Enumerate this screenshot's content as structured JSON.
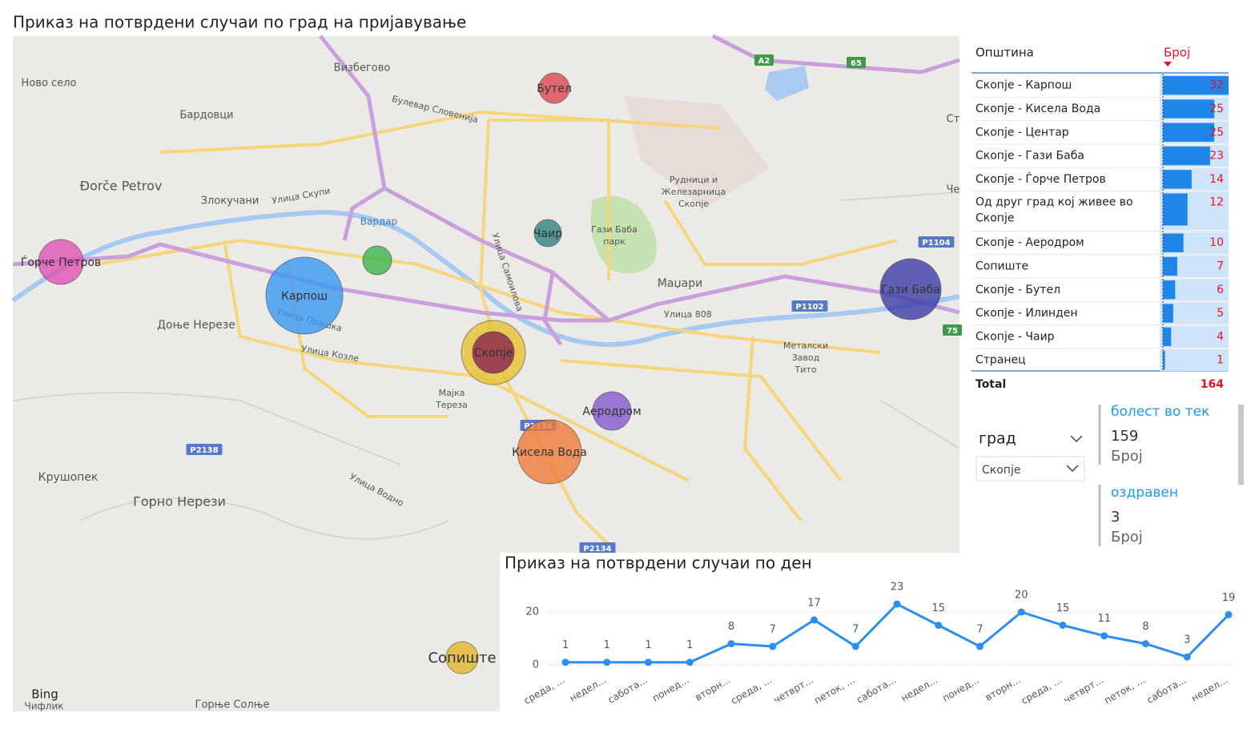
{
  "map": {
    "title": "Приказ на потврдени случаи по град на пријавување",
    "places": [
      "Ново село",
      "Визбегово",
      "Бардовци",
      "Булевар Словенија",
      "Đorče Petrov",
      "Злокучани",
      "Улица Скупи",
      "Вардар",
      "Рудници и",
      "Железарница",
      "Скопје",
      "Гази Баба",
      "парк",
      "Улица Самоилова",
      "Маџари",
      "Улица 808",
      "Доње Нерезе",
      "Улица Прашка",
      "Улица Козле",
      "Металски",
      "Завод",
      "Тито",
      "Мајка",
      "Тереза",
      "Крушопек",
      "Горно Нерези",
      "Улица Водно",
      "Горње Солње",
      "Чифлик",
      "Ст",
      "Че",
      "Bing"
    ],
    "shields": [
      "A2",
      "65",
      "P1104",
      "P1102",
      "75",
      "P2138",
      "P2134",
      "P2134"
    ],
    "bubbles": [
      {
        "label": "Бутел",
        "color": "#d9474f"
      },
      {
        "label": "Чаир",
        "color": "#2f8283"
      },
      {
        "label": null,
        "color": "#3cb44b"
      },
      {
        "label": "Ѓорче Петров",
        "color": "#e052b4"
      },
      {
        "label": "Карпош",
        "color": "#3a98f2"
      },
      {
        "label": null,
        "color": "#e6c12e"
      },
      {
        "label": "Скопје",
        "color": "#8a2350"
      },
      {
        "label": "Аеродром",
        "color": "#8458d0"
      },
      {
        "label": "Кисела Вода",
        "color": "#ef7a3a"
      },
      {
        "label": "Гази Баба",
        "color": "#3c3ca8"
      },
      {
        "label": "Сопиште",
        "color": "#e1b52c"
      }
    ]
  },
  "table": {
    "header": [
      "Општина",
      "Број"
    ],
    "rows": [
      [
        "Скопје - Карпош",
        32
      ],
      [
        "Скопје - Кисела Вода",
        25
      ],
      [
        "Скопје - Центар",
        25
      ],
      [
        "Скопје - Гази Баба",
        23
      ],
      [
        "Скопје - Ѓорче Петров",
        14
      ],
      [
        "Од друг град кој живее во Скопје",
        12
      ],
      [
        "Скопје - Аеродром",
        10
      ],
      [
        "Сопиште",
        7
      ],
      [
        "Скопје - Бутел",
        6
      ],
      [
        "Скопје - Илинден",
        5
      ],
      [
        "Скопје - Чаир",
        4
      ],
      [
        "Странец",
        1
      ]
    ],
    "total": [
      "Total",
      164
    ]
  },
  "slicer": {
    "title": "град",
    "selected": "Скопје"
  },
  "cards": [
    {
      "title": "болест во тек",
      "value": 159,
      "label": "Број"
    },
    {
      "title": "оздравен",
      "value": 3,
      "label": "Број"
    }
  ],
  "chart_data": {
    "type": "line",
    "title": "Приказ на потврдени случаи по ден",
    "categories": [
      "среда, ...",
      "недел...",
      "сабота...",
      "понед...",
      "вторн...",
      "среда, ...",
      "четврт...",
      "петок, ...",
      "сабота...",
      "недел...",
      "понед...",
      "вторн...",
      "среда, ...",
      "четврт...",
      "петок, ...",
      "сабота...",
      "недел..."
    ],
    "values": [
      1,
      1,
      1,
      1,
      8,
      7,
      17,
      7,
      23,
      15,
      7,
      20,
      15,
      11,
      8,
      3,
      19
    ],
    "color": "#2a8ff0",
    "ylim": [
      0,
      25
    ],
    "yticks": [
      0,
      20
    ],
    "grid": true
  }
}
